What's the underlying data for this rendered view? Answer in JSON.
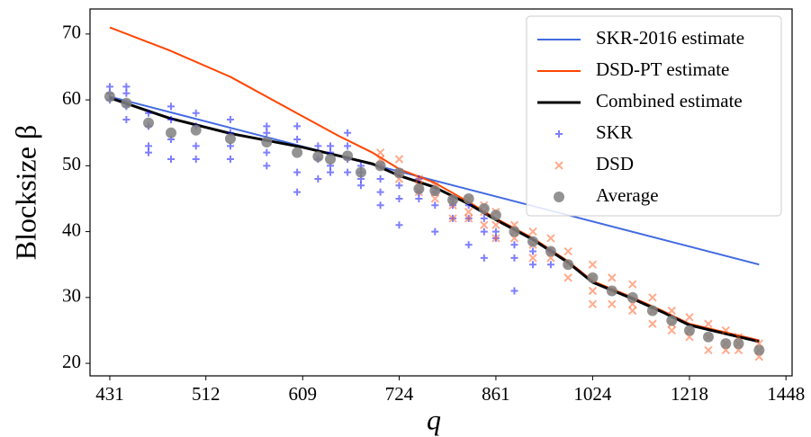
{
  "chart_data": {
    "type": "line",
    "xlabel": "q",
    "ylabel": "Blocksize β",
    "xscale": "log",
    "xlim": [
      416,
      1464
    ],
    "ylim": [
      18.1,
      73.8
    ],
    "xticks": [
      431,
      512,
      609,
      724,
      861,
      1024,
      1218,
      1448
    ],
    "yticks": [
      20,
      30,
      40,
      50,
      60,
      70
    ],
    "legend": "upper right",
    "series": [
      {
        "name": "SKR-2016 estimate",
        "color": "#4169e1",
        "kind": "line",
        "x": [
          431,
          1380
        ],
        "values": [
          60.5,
          35
        ]
      },
      {
        "name": "DSD-PT estimate",
        "color": "#ff4500",
        "kind": "line",
        "x": [
          431,
          480,
          535,
          609,
          650,
          690,
          724,
          770,
          820,
          861,
          920,
          980,
          1024,
          1100,
          1160,
          1218,
          1280,
          1380
        ],
        "values": [
          71,
          67.5,
          63.5,
          57.5,
          54.5,
          52,
          49.5,
          47.5,
          44.5,
          42,
          39,
          35.5,
          32.5,
          30,
          28,
          26,
          25,
          23.5
        ]
      },
      {
        "name": "Combined estimate",
        "color": "#000000",
        "kind": "line",
        "x": [
          431,
          480,
          535,
          609,
          650,
          690,
          724,
          770,
          820,
          861,
          920,
          980,
          1024,
          1100,
          1160,
          1218,
          1280,
          1380
        ],
        "values": [
          60.3,
          57.2,
          54.9,
          52.8,
          51.5,
          50.3,
          48.5,
          46.8,
          44.2,
          41.8,
          38.8,
          35.3,
          32.3,
          29.8,
          27.8,
          25.8,
          24.8,
          23.3
        ]
      },
      {
        "name": "SKR",
        "color": "#0000ff",
        "kind": "plus",
        "x": [
          431,
          431,
          431,
          444,
          444,
          444,
          444,
          462,
          462,
          462,
          462,
          481,
          481,
          481,
          481,
          503,
          503,
          503,
          503,
          535,
          535,
          535,
          535,
          571,
          571,
          571,
          571,
          603,
          603,
          603,
          603,
          626,
          626,
          626,
          640,
          640,
          640,
          640,
          660,
          660,
          660,
          660,
          676,
          676,
          676,
          676,
          700,
          700,
          700,
          700,
          724,
          724,
          724,
          724,
          750,
          750,
          750,
          772,
          772,
          772,
          797,
          797,
          797,
          820,
          820,
          820,
          843,
          843,
          843,
          861,
          861,
          890,
          890,
          890,
          920,
          920,
          950,
          950
        ],
        "values": [
          62,
          61,
          60,
          62,
          61,
          59,
          57,
          58,
          56,
          53,
          52,
          59,
          57,
          54,
          51,
          58,
          56,
          53,
          51,
          57,
          55,
          53,
          51,
          56,
          55,
          52,
          50,
          56,
          54,
          49,
          46,
          53,
          51,
          48,
          53,
          52,
          50,
          49,
          55,
          53,
          51,
          49,
          50,
          49,
          48,
          47,
          50,
          48,
          46,
          44,
          49,
          47,
          45,
          41,
          48,
          46,
          45,
          46,
          44,
          40,
          45,
          44,
          42,
          44,
          42,
          38,
          42,
          40,
          36,
          40,
          39,
          38,
          36,
          31,
          37,
          35,
          37,
          35
        ]
      },
      {
        "name": "DSD",
        "color": "#ff5a1f",
        "kind": "cross",
        "x": [
          700,
          700,
          700,
          724,
          724,
          724,
          750,
          750,
          750,
          772,
          772,
          772,
          797,
          797,
          797,
          820,
          820,
          820,
          843,
          843,
          843,
          861,
          861,
          861,
          890,
          890,
          890,
          920,
          920,
          920,
          950,
          950,
          950,
          980,
          980,
          980,
          1024,
          1024,
          1024,
          1024,
          1060,
          1060,
          1060,
          1100,
          1100,
          1100,
          1140,
          1140,
          1140,
          1180,
          1180,
          1180,
          1218,
          1218,
          1218,
          1260,
          1260,
          1260,
          1300,
          1300,
          1300,
          1330,
          1330,
          1330,
          1380,
          1380,
          1380
        ],
        "values": [
          52,
          51,
          50,
          51,
          49,
          48,
          48,
          47,
          46,
          47,
          46,
          45,
          45,
          44,
          42,
          45,
          43,
          42,
          44,
          43,
          41,
          43,
          41,
          39,
          41,
          40,
          39,
          40,
          38,
          36,
          39,
          37,
          36,
          37,
          35,
          33,
          35,
          33,
          31,
          29,
          33,
          31,
          29,
          32,
          29,
          28,
          30,
          28,
          26,
          28,
          26,
          25,
          27,
          25,
          24,
          26,
          24,
          22,
          25,
          23,
          22,
          24,
          23,
          22,
          23,
          22,
          21
        ]
      },
      {
        "name": "Average",
        "color": "#808080",
        "kind": "dot",
        "x": [
          431,
          444,
          462,
          481,
          503,
          535,
          571,
          603,
          626,
          640,
          660,
          676,
          700,
          724,
          750,
          772,
          797,
          820,
          843,
          861,
          890,
          920,
          950,
          980,
          1024,
          1060,
          1100,
          1140,
          1180,
          1218,
          1260,
          1300,
          1330,
          1380
        ],
        "values": [
          60.5,
          59.5,
          56.5,
          55,
          55.4,
          54.1,
          53.6,
          52,
          51.4,
          51,
          51.5,
          49,
          50,
          48.9,
          46.5,
          46.2,
          44.8,
          45,
          43.5,
          42.5,
          40,
          38.5,
          37,
          35,
          33,
          31,
          30,
          28,
          26.5,
          25,
          24,
          23,
          23,
          22
        ]
      }
    ]
  }
}
